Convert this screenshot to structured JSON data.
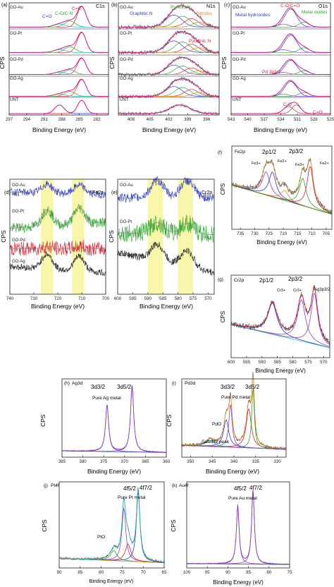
{
  "figure": {
    "colors": {
      "frame": "#222222",
      "noisy": "#555555",
      "envelope": "#e0168c",
      "blue": "#2a3ad6",
      "green": "#2ca52c",
      "orange": "#e08a1c",
      "red": "#e01d2d",
      "cyan": "#1bbcb8",
      "purple": "#8a3fd0",
      "yellow": "#f8f6a8"
    }
  },
  "chart_data": [
    {
      "id": "a",
      "type": "line",
      "panel_label": "(a)",
      "element_label": "C1s",
      "xlabel": "Binding Energy (eV)",
      "ylabel": "CPS",
      "xlim": [
        297,
        280
      ],
      "xticks": [
        "297",
        "294",
        "291",
        "288",
        "285",
        "282"
      ],
      "stack_labels": [
        "GO-Au",
        "GO-Pt",
        "GO-Pd",
        "GO-Ag",
        "UNT"
      ],
      "annotations": [
        {
          "text": "C=C",
          "color": "red"
        },
        {
          "text": "C=O",
          "color": "blue"
        },
        {
          "text": "C-O/C-N",
          "color": "green"
        }
      ],
      "peaks": [
        {
          "name": "C=C",
          "x": 284.6
        },
        {
          "name": "C-O/C-N",
          "x": 286.6
        },
        {
          "name": "C=O",
          "x": 288.4
        }
      ]
    },
    {
      "id": "b",
      "type": "line",
      "panel_label": "(b)",
      "element_label": "N1s",
      "xlabel": "Binding Energy (eV)",
      "ylabel": "CPS",
      "xlim": [
        410,
        394
      ],
      "xticks": [
        "408",
        "405",
        "402",
        "399",
        "396"
      ],
      "stack_labels": [
        "GO-Au",
        "GO-Pt",
        "GO-Pd",
        "GO-Ag",
        "UNT"
      ],
      "annotations": [
        {
          "text": "Graphitic N",
          "color": "blue"
        },
        {
          "text": "Pyrrolic N",
          "color": "green"
        },
        {
          "text": "Nitrides",
          "color": "orange"
        },
        {
          "text": "Pyridinic N",
          "color": "red"
        }
      ],
      "peaks": [
        {
          "name": "Graphitic N",
          "x": 401.2
        },
        {
          "name": "Pyrrolic N",
          "x": 399.8
        },
        {
          "name": "Pyridinic N",
          "x": 398.4
        },
        {
          "name": "Nitrides",
          "x": 397.2
        }
      ]
    },
    {
      "id": "c",
      "type": "line",
      "panel_label": "(c)",
      "element_label": "O1s",
      "xlabel": "Binding Energy (eV)",
      "ylabel": "CPS",
      "xlim": [
        543,
        525
      ],
      "xticks": [
        "543",
        "540",
        "537",
        "534",
        "531",
        "528",
        "525"
      ],
      "stack_labels": [
        "GO-Au",
        "GO-Pt",
        "GO-Pd",
        "GO-Ag",
        "UNT"
      ],
      "annotations": [
        {
          "text": "C-O/C=O",
          "color": "red"
        },
        {
          "text": "Metal hydroxides",
          "color": "blue"
        },
        {
          "text": "Metal oxides",
          "color": "green"
        },
        {
          "text": "Pd 3p3/2",
          "color": "red"
        },
        {
          "text": "C-O",
          "color": "red"
        },
        {
          "text": "C=O",
          "color": "red"
        }
      ],
      "peaks": [
        {
          "name": "C-O",
          "x": 532.6
        },
        {
          "name": "C=O",
          "x": 531.2
        },
        {
          "name": "Metal hydroxides",
          "x": 532.2
        },
        {
          "name": "Metal oxides",
          "x": 529.8
        }
      ]
    },
    {
      "id": "d",
      "type": "line",
      "panel_label": "(d)",
      "element_label": "Fe2p",
      "xlabel": "Binding Energy (eV)",
      "ylabel": "CPS",
      "xlim": [
        740,
        700
      ],
      "xticks": [
        "740",
        "730",
        "720",
        "710",
        "700"
      ],
      "stack_labels": [
        "GO-Au",
        "GO-Pt",
        "GO-Pd",
        "GO-Ag"
      ],
      "highlight_bands": [
        [
          727,
          722
        ],
        [
          714,
          709
        ]
      ],
      "peaks": [
        {
          "x": 724.5
        },
        {
          "x": 711.0
        }
      ]
    },
    {
      "id": "e",
      "type": "line",
      "panel_label": "(e)",
      "element_label": "Cr2p",
      "xlabel": "Binding Energy (eV)",
      "ylabel": "CPS",
      "xlim": [
        600,
        568
      ],
      "xticks": [
        "600",
        "595",
        "590",
        "585",
        "580",
        "575",
        "570"
      ],
      "stack_labels": [
        "GO-Au",
        "GO-Pt",
        "GO-Ag"
      ],
      "highlight_bands": [
        [
          590,
          585
        ],
        [
          580,
          575
        ]
      ],
      "peaks": [
        {
          "x": 586.8
        },
        {
          "x": 577.0
        }
      ]
    },
    {
      "id": "f",
      "type": "line",
      "panel_label": "(f)",
      "element_label": "Fe2p",
      "xlabel": "Binding Energy (eV)",
      "ylabel": "CPS",
      "xlim": [
        738,
        703
      ],
      "xticks": [
        "735",
        "730",
        "725",
        "720",
        "715",
        "710",
        "705"
      ],
      "annotations": [
        "2p1/2",
        "2p3/2",
        "Fe3+",
        "Fe2+",
        "Fe3+",
        "Fe2+"
      ],
      "peaks": [
        {
          "label": "Fe3+",
          "x": 726.0
        },
        {
          "label": "Fe2+",
          "x": 723.8
        },
        {
          "label": "Fe3+",
          "x": 713.2
        },
        {
          "label": "Fe2+",
          "x": 710.6
        }
      ]
    },
    {
      "id": "g",
      "type": "line",
      "panel_label": "(g)",
      "element_label": "Cr2p",
      "xlabel": "Binding Energy (eV)",
      "ylabel": "CPS",
      "xlim": [
        600,
        568
      ],
      "xticks": [
        "600",
        "595",
        "590",
        "585",
        "580",
        "575",
        "570"
      ],
      "annotations": [
        "2p1/2",
        "2p3/2",
        "Cr3+",
        "Cr3+",
        "Ag3p3/2"
      ],
      "peaks": [
        {
          "label": "Cr3+",
          "x": 586.6
        },
        {
          "label": "Cr3+",
          "x": 577.2
        },
        {
          "label": "Ag3p3/2",
          "x": 573.0
        }
      ]
    },
    {
      "id": "h",
      "type": "line",
      "panel_label": "(h)",
      "element_label": "Ag3d",
      "xlabel": "Binding Energy (eV)",
      "ylabel": "CPS",
      "xlim": [
        385,
        360
      ],
      "xticks": [
        "385",
        "380",
        "375",
        "370",
        "365",
        "360"
      ],
      "annotations": [
        "3d3/2",
        "3d5/2",
        "Pure Ag metal"
      ],
      "peaks": [
        {
          "label": "3d3/2",
          "x": 374.2
        },
        {
          "label": "3d5/2",
          "x": 368.2
        }
      ]
    },
    {
      "id": "i",
      "type": "line",
      "panel_label": "(i)",
      "element_label": "Pd3d",
      "xlabel": "Binding Energy (eV)",
      "ylabel": "CPS",
      "xlim": [
        352,
        328
      ],
      "xticks": [
        "350",
        "345",
        "340",
        "335",
        "330"
      ],
      "annotations": [
        "3d3/2",
        "3d5/2",
        "Pure Pd metal",
        "PdO",
        "Satellite peak"
      ],
      "peaks": [
        {
          "label": "PdO",
          "x": 341.8
        },
        {
          "label": "Pure Pd metal",
          "x": 340.8
        },
        {
          "label": "PdO",
          "x": 336.6
        },
        {
          "label": "Pure Pd metal",
          "x": 335.6
        }
      ]
    },
    {
      "id": "j",
      "type": "line",
      "panel_label": "(j)",
      "element_label": "Pt4f",
      "xlabel": "Binding Energy (eV)",
      "ylabel": "CPS",
      "xlim": [
        90,
        65
      ],
      "xticks": [
        "90",
        "85",
        "80",
        "75",
        "70",
        "65"
      ],
      "annotations": [
        "4f5/2",
        "4f7/2",
        "Pure Pt metal",
        "PtO"
      ],
      "peaks": [
        {
          "label": "4f5/2",
          "x": 74.6
        },
        {
          "label": "4f7/2",
          "x": 71.2
        },
        {
          "label": "PtO",
          "x": 73.6
        }
      ]
    },
    {
      "id": "k",
      "type": "line",
      "panel_label": "(k)",
      "element_label": "Au4f",
      "xlabel": "Binding Energy (eV)",
      "ylabel": "CPS",
      "xlim": [
        100,
        75
      ],
      "xticks": [
        "100",
        "95",
        "90",
        "85",
        "80",
        "75"
      ],
      "annotations": [
        "4f5/2",
        "4f7/2",
        "Pure Au metal"
      ],
      "peaks": [
        {
          "label": "4f5/2",
          "x": 87.6
        },
        {
          "label": "4f7/2",
          "x": 83.9
        }
      ]
    }
  ]
}
